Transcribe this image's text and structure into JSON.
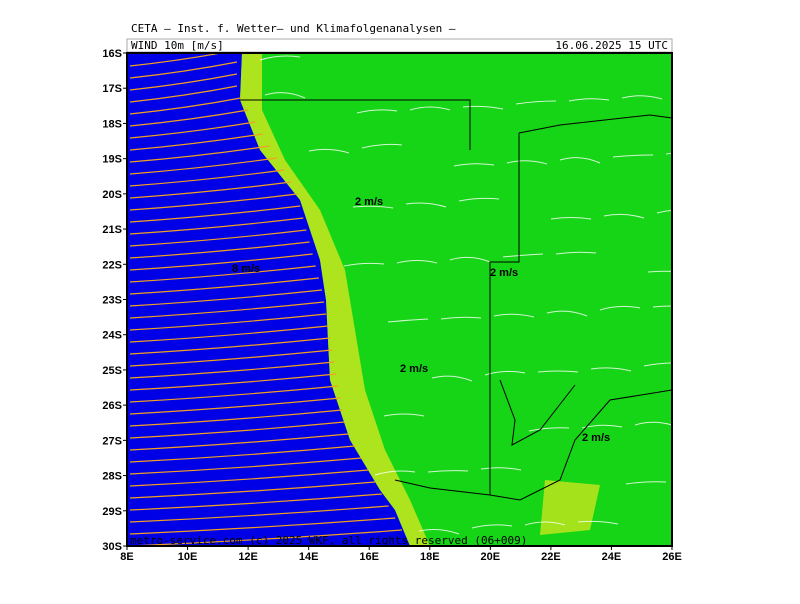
{
  "header": {
    "title": "CETA — Inst. f. Wetter— und Klimafolgenanalysen —",
    "field": "WIND 10m [m/s]",
    "valid": "16.06.2025 15 UTC"
  },
  "axes": {
    "lat": [
      "16S",
      "17S",
      "18S",
      "19S",
      "20S",
      "21S",
      "22S",
      "23S",
      "24S",
      "25S",
      "26S",
      "27S",
      "28S",
      "29S",
      "30S"
    ],
    "lon": [
      "8E",
      "10E",
      "12E",
      "14E",
      "16E",
      "18E",
      "20E",
      "22E",
      "24E",
      "26E"
    ]
  },
  "contour_labels": [
    "2 m/s",
    "8 m/s",
    "2 m/s",
    "2 m/s",
    "2 m/s"
  ],
  "footer": "metro-service.com (c) 2025 WKF, all rights reserved (06+009)"
}
